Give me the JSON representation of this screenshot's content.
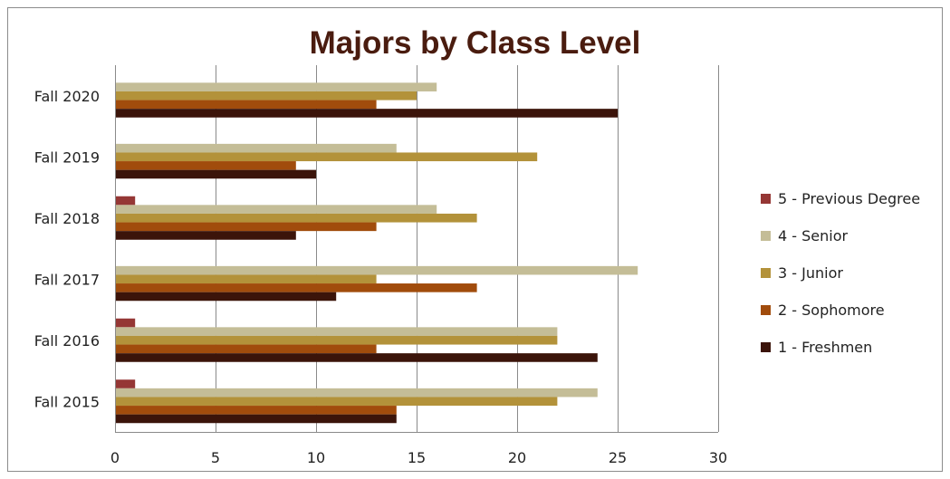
{
  "chart_data": {
    "type": "bar",
    "orientation": "horizontal",
    "title": "Majors by Class Level",
    "categories": [
      "Fall 2020",
      "Fall 2019",
      "Fall 2018",
      "Fall 2017",
      "Fall 2016",
      "Fall 2015"
    ],
    "xlim": [
      0,
      30
    ],
    "xticks": [
      "0",
      "5",
      "10",
      "15",
      "20",
      "25",
      "30"
    ],
    "grid": true,
    "legend_position": "right",
    "series": [
      {
        "name": "5 - Previous Degree",
        "color": "#953735",
        "values": [
          0,
          0,
          1,
          0,
          1,
          1
        ]
      },
      {
        "name": "4 - Senior",
        "color": "#c4bd97",
        "values": [
          16,
          14,
          16,
          26,
          22,
          24
        ]
      },
      {
        "name": "3 - Junior",
        "color": "#b3923a",
        "values": [
          15,
          21,
          18,
          13,
          22,
          22
        ]
      },
      {
        "name": "2 - Sophomore",
        "color": "#a14c0c",
        "values": [
          13,
          9,
          13,
          18,
          13,
          14
        ]
      },
      {
        "name": "1 - Freshmen",
        "color": "#3b140a",
        "values": [
          25,
          10,
          9,
          11,
          24,
          14
        ]
      }
    ]
  }
}
